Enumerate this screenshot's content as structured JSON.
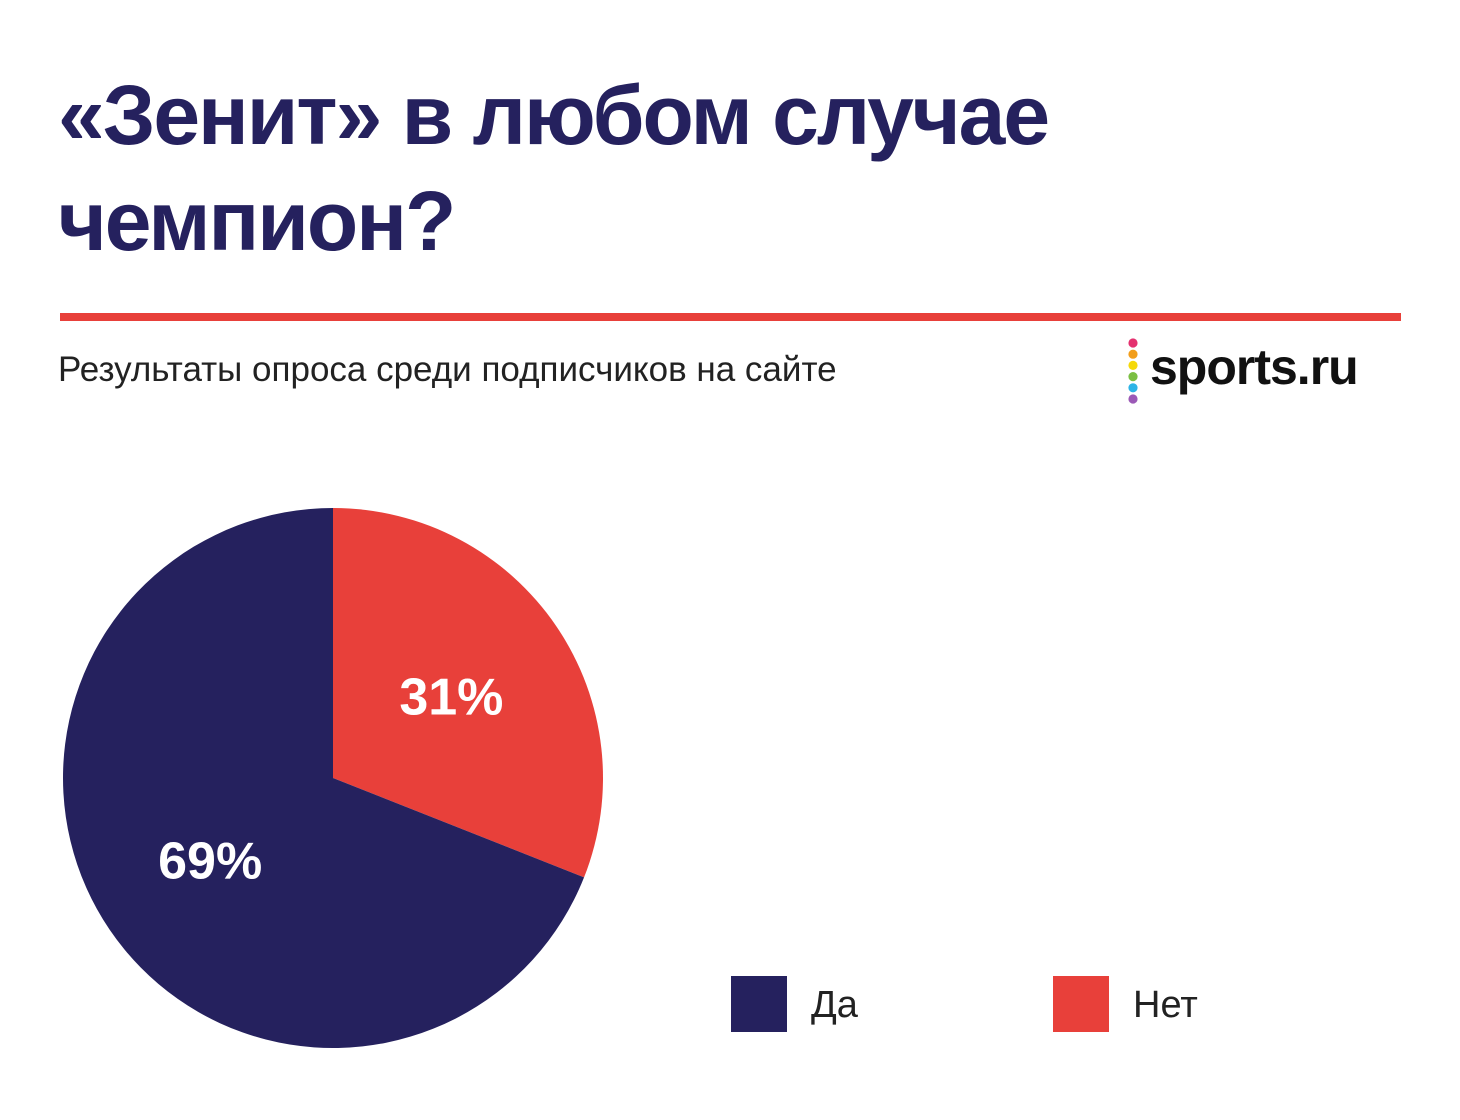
{
  "header": {
    "title": "«Зенит» в любом случае чемпион?",
    "subtitle": "Результаты опроса среди подписчиков на сайте",
    "logo_text": "sports.ru",
    "divider_color": "#e8403a"
  },
  "colors": {
    "yes": "#25215e",
    "no": "#e8403a",
    "title": "#25215e",
    "logo_dots": [
      "#e4316f",
      "#f29e1b",
      "#f5d90a",
      "#7bbf43",
      "#2db4e6",
      "#9b59b6"
    ]
  },
  "chart_data": {
    "type": "pie",
    "title": "«Зенит» в любом случае чемпион?",
    "categories": [
      "Да",
      "Нет"
    ],
    "values": [
      69,
      31
    ],
    "data_labels": [
      "69%",
      "31%"
    ],
    "colors": [
      "#25215e",
      "#e8403a"
    ],
    "legend_position": "bottom-right"
  }
}
